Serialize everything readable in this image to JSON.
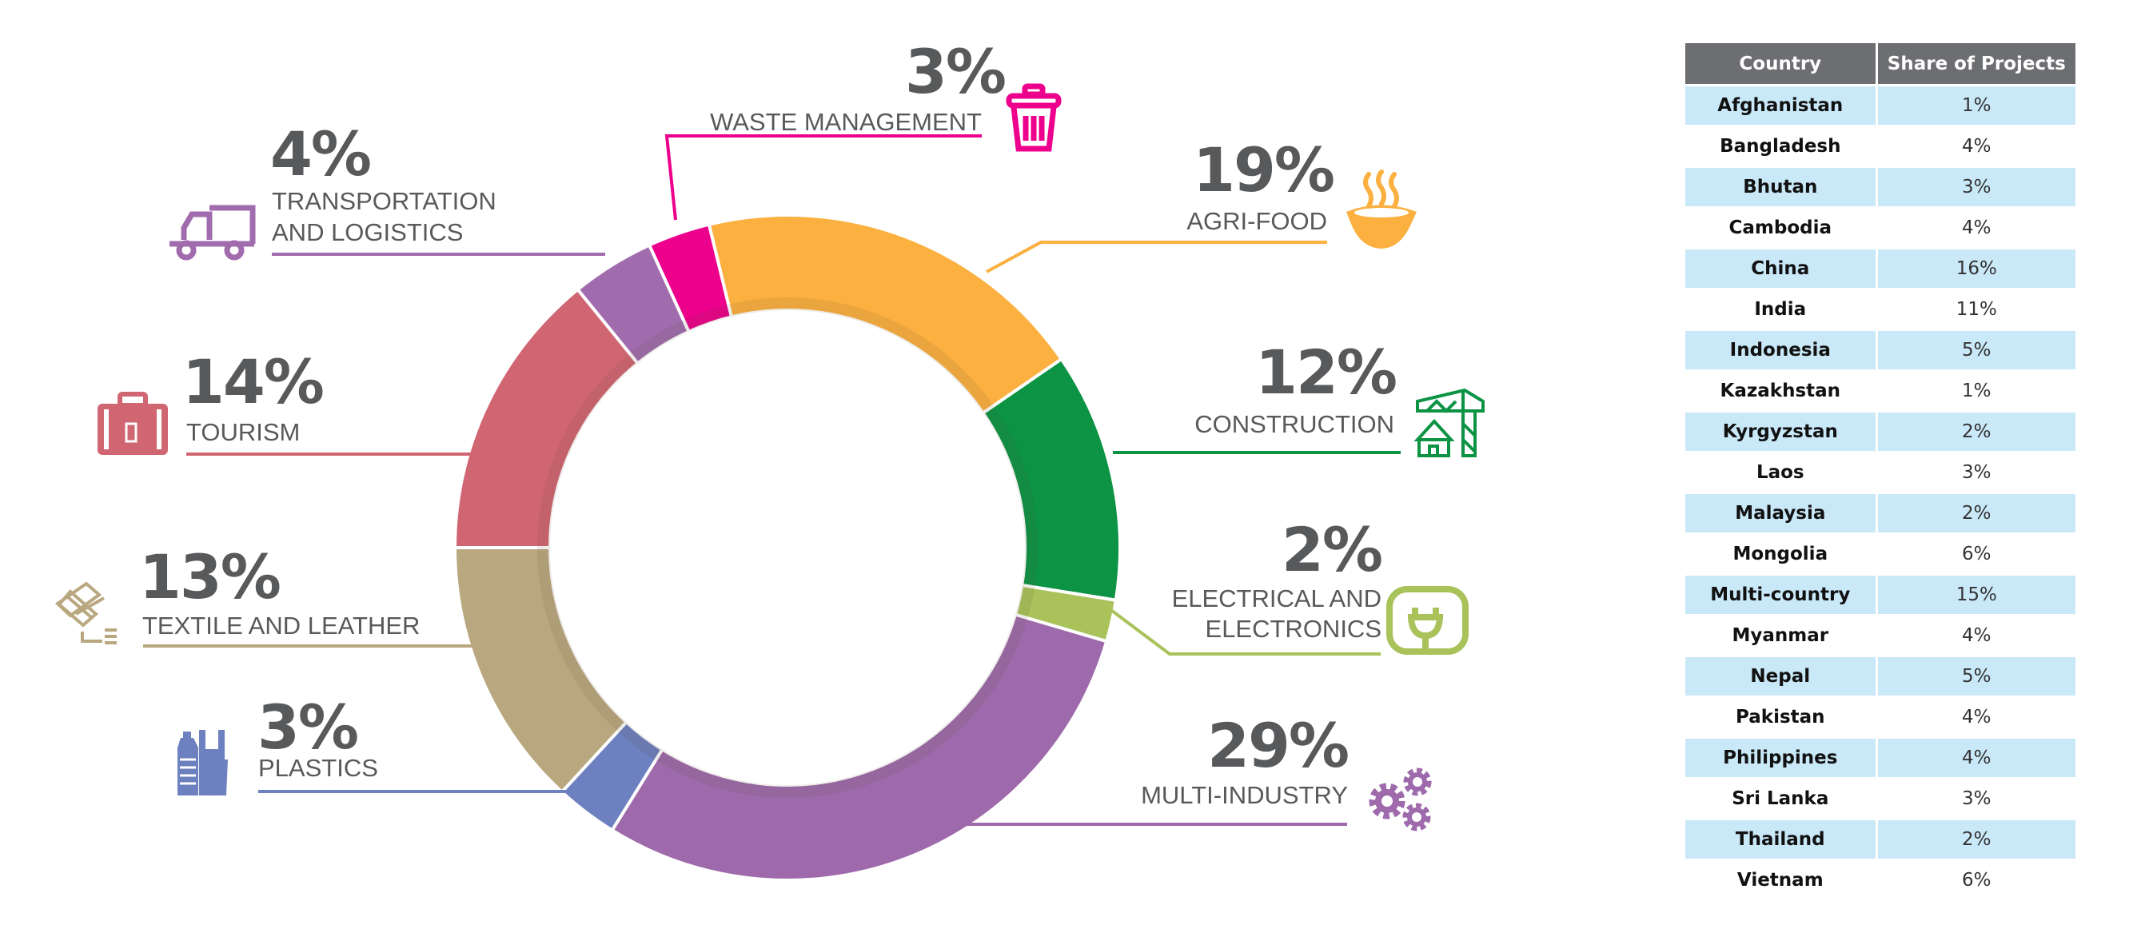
{
  "chart_data": {
    "type": "pie",
    "subtype": "donut",
    "unit": "%",
    "segments": [
      {
        "name": "Tourism",
        "label_lines": [
          "TOURISM"
        ],
        "value": 14,
        "value_label": "14%",
        "color": "#d16673",
        "icon": "suitcase-icon"
      },
      {
        "name": "Transportation and Logistics",
        "label_lines": [
          "TRANSPORTATION",
          "AND LOGISTICS"
        ],
        "value": 4,
        "value_label": "4%",
        "color": "#a06cad",
        "icon": "truck-icon"
      },
      {
        "name": "Waste Management",
        "label_lines": [
          "WASTE MANAGEMENT"
        ],
        "value": 3,
        "value_label": "3%",
        "color": "#ec008c",
        "icon": "trash-bin-icon"
      },
      {
        "name": "Agri-Food",
        "label_lines": [
          "AGRI-FOOD"
        ],
        "value": 19,
        "value_label": "19%",
        "color": "#fbb040",
        "icon": "steaming-bowl-icon"
      },
      {
        "name": "Construction",
        "label_lines": [
          "CONSTRUCTION"
        ],
        "value": 12,
        "value_label": "12%",
        "color": "#0c9344",
        "icon": "crane-house-icon"
      },
      {
        "name": "Electrical and Electronics",
        "label_lines": [
          "ELECTRICAL AND",
          "ELECTRONICS"
        ],
        "value": 2,
        "value_label": "2%",
        "color": "#a9c25a",
        "icon": "plug-icon"
      },
      {
        "name": "Multi-Industry",
        "label_lines": [
          "MULTI-INDUSTRY"
        ],
        "value": 29,
        "value_label": "29%",
        "color": "#9e6aab",
        "icon": "gears-icon"
      },
      {
        "name": "Plastics",
        "label_lines": [
          "PLASTICS"
        ],
        "value": 3,
        "value_label": "3%",
        "color": "#6d80bf",
        "icon": "plastic-bottle-icon"
      },
      {
        "name": "Textile and Leather",
        "label_lines": [
          "TEXTILE AND LEATHER"
        ],
        "value": 13,
        "value_label": "13%",
        "color": "#b9a77f",
        "icon": "weave-icon"
      }
    ],
    "legend": "none",
    "labels": "external with leader lines"
  },
  "table": {
    "headers": [
      "Country",
      "Share of Projects"
    ],
    "header_color": "#6d6e71",
    "stripe_color": "#c9e8f8",
    "rows": [
      [
        "Afghanistan",
        "1%"
      ],
      [
        "Bangladesh",
        "4%"
      ],
      [
        "Bhutan",
        "3%"
      ],
      [
        "Cambodia",
        "4%"
      ],
      [
        "China",
        "16%"
      ],
      [
        "India",
        "11%"
      ],
      [
        "Indonesia",
        "5%"
      ],
      [
        "Kazakhstan",
        "1%"
      ],
      [
        "Kyrgyzstan",
        "2%"
      ],
      [
        "Laos",
        "3%"
      ],
      [
        "Malaysia",
        "2%"
      ],
      [
        "Mongolia",
        "6%"
      ],
      [
        "Multi-country",
        "15%"
      ],
      [
        "Myanmar",
        "4%"
      ],
      [
        "Nepal",
        "5%"
      ],
      [
        "Pakistan",
        "4%"
      ],
      [
        "Philippines",
        "4%"
      ],
      [
        "Sri Lanka",
        "3%"
      ],
      [
        "Thailand",
        "2%"
      ],
      [
        "Vietnam",
        "6%"
      ]
    ]
  }
}
